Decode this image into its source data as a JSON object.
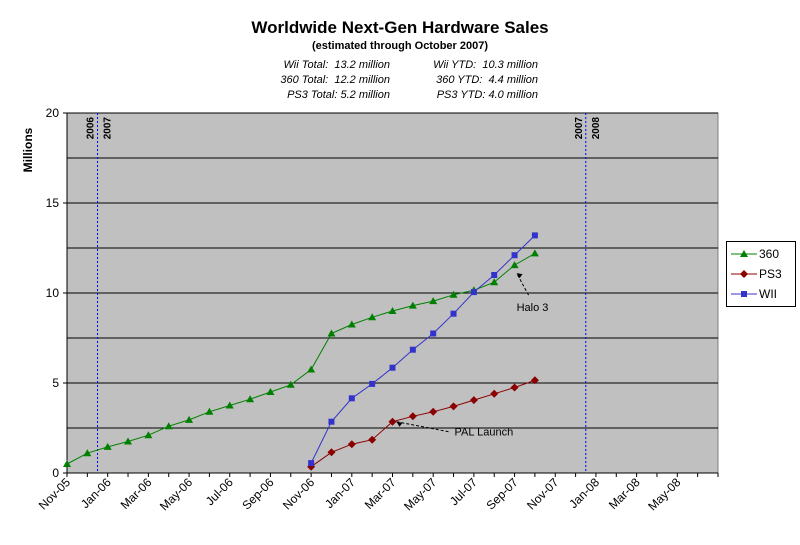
{
  "title": "Worldwide Next-Gen Hardware Sales",
  "subtitle": "(estimated through October 2007)",
  "stats": {
    "left": [
      "Wii Total:  13.2 million",
      "360 Total:  12.2 million",
      "PS3 Total: 5.2 million"
    ],
    "right": [
      "Wii YTD:  10.3 million",
      "360 YTD:  4.4 million",
      "PS3 YTD: 4.0 million"
    ]
  },
  "colors": {
    "plot_bg": "#c0c0c0",
    "x360": "#008000",
    "ps3": "#8b0000",
    "wii": "#3333cc",
    "year_line": "#0000ff"
  },
  "chart_data": {
    "type": "line",
    "title": "Worldwide Next-Gen Hardware Sales",
    "subtitle": "(estimated through October 2007)",
    "ylabel": "Millions",
    "xlabel": "",
    "ylim": [
      0,
      20
    ],
    "yticks": [
      0,
      5,
      10,
      15,
      20
    ],
    "grid": true,
    "legend_position": "right",
    "xtick_labels": [
      "Nov-05",
      "Jan-06",
      "Mar-06",
      "May-06",
      "Jul-06",
      "Sep-06",
      "Nov-06",
      "Jan-07",
      "Mar-07",
      "May-07",
      "Jul-07",
      "Sep-07",
      "Nov-07",
      "Jan-08",
      "Mar-08",
      "May-08"
    ],
    "months": [
      "Nov-05",
      "Dec-05",
      "Jan-06",
      "Feb-06",
      "Mar-06",
      "Apr-06",
      "May-06",
      "Jun-06",
      "Jul-06",
      "Aug-06",
      "Sep-06",
      "Oct-06",
      "Nov-06",
      "Dec-06",
      "Jan-07",
      "Feb-07",
      "Mar-07",
      "Apr-07",
      "May-07",
      "Jun-07",
      "Jul-07",
      "Aug-07",
      "Sep-07",
      "Oct-07",
      "Nov-07",
      "Dec-07",
      "Jan-08",
      "Feb-08",
      "Mar-08",
      "Apr-08",
      "May-08",
      "Jun-08",
      "Jul-08"
    ],
    "series": [
      {
        "name": "360",
        "marker": "triangle",
        "start": "Nov-05",
        "values": [
          0.5,
          1.1,
          1.45,
          1.75,
          2.1,
          2.6,
          2.95,
          3.4,
          3.75,
          4.1,
          4.5,
          4.9,
          5.75,
          7.75,
          8.25,
          8.65,
          9.0,
          9.3,
          9.55,
          9.9,
          10.15,
          10.6,
          11.55,
          12.2
        ]
      },
      {
        "name": "PS3",
        "marker": "diamond",
        "start": "Nov-06",
        "values": [
          0.35,
          1.15,
          1.6,
          1.85,
          2.85,
          3.15,
          3.4,
          3.7,
          4.05,
          4.4,
          4.75,
          5.15
        ]
      },
      {
        "name": "WII",
        "marker": "square",
        "start": "Nov-06",
        "values": [
          0.55,
          2.85,
          4.15,
          4.95,
          5.85,
          6.85,
          7.75,
          8.85,
          10.05,
          11.0,
          12.1,
          13.2
        ]
      }
    ],
    "year_boundaries": [
      {
        "after": "Dec-05",
        "left_label": "2006",
        "right_label": "2007"
      },
      {
        "after": "Dec-07",
        "left_label": "2007",
        "right_label": "2008"
      }
    ],
    "annotations": [
      {
        "text": "Halo 3",
        "points_to": {
          "series": "360",
          "month": "Sep-07"
        }
      },
      {
        "text": "PAL Launch",
        "points_to": {
          "series": "PS3",
          "month": "Mar-07"
        }
      }
    ]
  }
}
